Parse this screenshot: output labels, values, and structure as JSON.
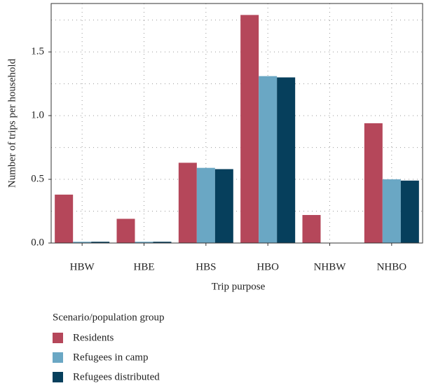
{
  "chart_data": {
    "type": "bar",
    "x_label": "Trip purpose",
    "y_label": "Number of trips per household",
    "legend_title": "Scenario/population group",
    "categories": [
      "HBW",
      "HBE",
      "HBS",
      "HBO",
      "NHBW",
      "NHBO"
    ],
    "series": [
      {
        "name": "Residents",
        "color": "#b5475a",
        "values": [
          0.38,
          0.19,
          0.63,
          1.79,
          0.22,
          0.94
        ]
      },
      {
        "name": "Refugees in camp",
        "color": "#6aa7c4",
        "values": [
          0.01,
          0.01,
          0.59,
          1.31,
          0,
          0.5
        ]
      },
      {
        "name": "Refugees distributed",
        "color": "#063f5c",
        "values": [
          0.01,
          0.01,
          0.58,
          1.3,
          0,
          0.49
        ]
      }
    ],
    "ylim": [
      0,
      1.88
    ],
    "yticks": [
      {
        "value": 0,
        "label": "0.0"
      },
      0.5,
      {
        "value": 1,
        "label": "1.0"
      },
      1.5
    ],
    "grid": true
  }
}
